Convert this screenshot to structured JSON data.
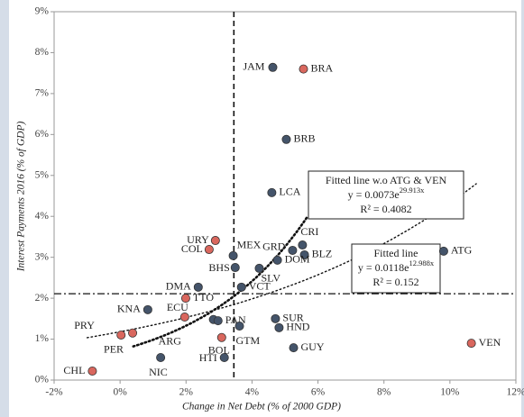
{
  "chart_data": {
    "type": "scatter",
    "xlabel": "Change in Net Debt (% of 2000 GDP)",
    "ylabel": "Interest Payments 2016 (% of GDP)",
    "xlim": [
      -2,
      12
    ],
    "ylim": [
      0,
      9
    ],
    "xticks": [
      {
        "value": -2,
        "label": "-2%"
      },
      {
        "value": 0,
        "label": "0%"
      },
      {
        "value": 2,
        "label": "2%"
      },
      {
        "value": 4,
        "label": "4%"
      },
      {
        "value": 6,
        "label": "6%"
      },
      {
        "value": 8,
        "label": "8%"
      },
      {
        "value": 10,
        "label": "10%"
      },
      {
        "value": 12,
        "label": "12%"
      }
    ],
    "yticks": [
      {
        "value": 0,
        "label": "0%"
      },
      {
        "value": 1,
        "label": "1%"
      },
      {
        "value": 2,
        "label": "2%"
      },
      {
        "value": 3,
        "label": "3%"
      },
      {
        "value": 4,
        "label": "4%"
      },
      {
        "value": 5,
        "label": "5%"
      },
      {
        "value": 6,
        "label": "6%"
      },
      {
        "value": 7,
        "label": "7%"
      },
      {
        "value": 8,
        "label": "8%"
      },
      {
        "value": 9,
        "label": "9%"
      }
    ],
    "vline": 3.45,
    "hline": 2.11,
    "points": [
      {
        "label": "JAM",
        "x": 4.63,
        "y": 7.64,
        "color": "#44546a"
      },
      {
        "label": "BRA",
        "x": 5.56,
        "y": 7.6,
        "color": "#d9675e"
      },
      {
        "label": "BRB",
        "x": 5.04,
        "y": 5.88,
        "color": "#44546a"
      },
      {
        "label": "LCA",
        "x": 4.6,
        "y": 4.58,
        "color": "#44546a"
      },
      {
        "label": "CRI",
        "x": 5.53,
        "y": 3.3,
        "color": "#44546a"
      },
      {
        "label": "GRD",
        "x": 5.23,
        "y": 3.17,
        "color": "#44546a"
      },
      {
        "label": "BLZ",
        "x": 5.59,
        "y": 3.06,
        "color": "#44546a"
      },
      {
        "label": "ATG",
        "x": 9.81,
        "y": 3.15,
        "color": "#44546a"
      },
      {
        "label": "URY",
        "x": 2.89,
        "y": 3.41,
        "color": "#d9675e"
      },
      {
        "label": "COL",
        "x": 2.7,
        "y": 3.19,
        "color": "#d9675e"
      },
      {
        "label": "MEX",
        "x": 3.43,
        "y": 3.04,
        "color": "#44546a"
      },
      {
        "label": "DOM",
        "x": 4.77,
        "y": 2.93,
        "color": "#44546a"
      },
      {
        "label": "BHS",
        "x": 3.49,
        "y": 2.75,
        "color": "#44546a"
      },
      {
        "label": "SLV",
        "x": 4.22,
        "y": 2.73,
        "color": "#44546a"
      },
      {
        "label": "VCT",
        "x": 3.68,
        "y": 2.27,
        "color": "#44546a"
      },
      {
        "label": "DMA",
        "x": 2.37,
        "y": 2.27,
        "color": "#44546a"
      },
      {
        "label": "TTO",
        "x": 1.99,
        "y": 2.0,
        "color": "#d9675e"
      },
      {
        "label": "KNA",
        "x": 0.84,
        "y": 1.72,
        "color": "#44546a"
      },
      {
        "label": "ECU",
        "x": 1.96,
        "y": 1.54,
        "color": "#d9675e"
      },
      {
        "label": "ARG",
        "x": 2.83,
        "y": 1.48,
        "color": "#44546a"
      },
      {
        "label": "PAN",
        "x": 2.97,
        "y": 1.45,
        "color": "#44546a"
      },
      {
        "label": "SUR",
        "x": 4.71,
        "y": 1.5,
        "color": "#44546a"
      },
      {
        "label": "HND",
        "x": 4.82,
        "y": 1.28,
        "color": "#44546a"
      },
      {
        "label": "BOL",
        "x": 3.08,
        "y": 1.04,
        "color": "#d9675e"
      },
      {
        "label": "GTM",
        "x": 3.62,
        "y": 1.32,
        "color": "#44546a"
      },
      {
        "label": "GUY",
        "x": 5.26,
        "y": 0.79,
        "color": "#44546a"
      },
      {
        "label": "VEN",
        "x": 10.65,
        "y": 0.9,
        "color": "#d9675e"
      },
      {
        "label": "PRY",
        "x": 0.03,
        "y": 1.1,
        "color": "#d9675e"
      },
      {
        "label": "PER",
        "x": 0.38,
        "y": 1.15,
        "color": "#d9675e"
      },
      {
        "label": "NIC",
        "x": 1.23,
        "y": 0.55,
        "color": "#44546a"
      },
      {
        "label": "HTI",
        "x": 3.16,
        "y": 0.55,
        "color": "#44546a"
      },
      {
        "label": "CHL",
        "x": -0.84,
        "y": 0.22,
        "color": "#d9675e"
      }
    ],
    "trendlines": [
      {
        "name": "Fitted line w.o ATG & VEN",
        "equation": "y = 0.0073e",
        "exponent_label": "29.913x",
        "r2": "R² = 0.4082",
        "a": 0.0073,
        "b": 29.913,
        "x_range": [
          0.4,
          5.7
        ],
        "width": 2.6
      },
      {
        "name": "Fitted line",
        "equation": "y = 0.0118e",
        "exponent_label": "12.988x",
        "r2": "R² = 0.152",
        "a": 0.0118,
        "b": 12.988,
        "x_range": [
          -1,
          10.8
        ],
        "width": 1.4
      }
    ]
  }
}
